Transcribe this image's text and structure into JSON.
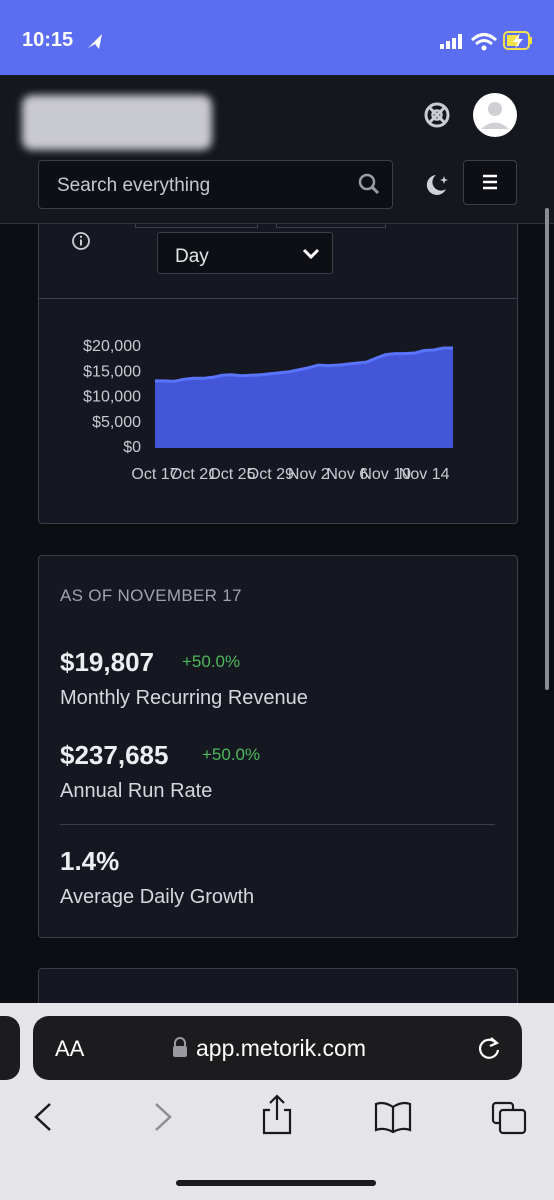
{
  "status_bar": {
    "time": "10:15"
  },
  "header": {
    "search_placeholder": "Search everything"
  },
  "chart_controls": {
    "interval": "Day"
  },
  "chart_data": {
    "type": "area",
    "categories": [
      "Oct 17",
      null,
      null,
      null,
      "Oct 21",
      null,
      null,
      null,
      "Oct 25",
      null,
      null,
      null,
      "Oct 29",
      null,
      null,
      null,
      "Nov 2",
      null,
      null,
      null,
      "Nov 6",
      null,
      null,
      null,
      "Nov 10",
      null,
      null,
      null,
      "Nov 14",
      null,
      null,
      null
    ],
    "values": [
      13300,
      13300,
      13200,
      13600,
      13800,
      13800,
      14000,
      14400,
      14500,
      14300,
      14400,
      14500,
      14700,
      14900,
      15100,
      15500,
      15900,
      16400,
      16300,
      16400,
      16600,
      16800,
      17000,
      17800,
      18500,
      18700,
      18700,
      18800,
      19300,
      19400,
      19800,
      19807
    ],
    "color": "#4356d8",
    "ylim": [
      0,
      20000
    ],
    "yticks": [
      {
        "value": 0,
        "label": "$0"
      },
      {
        "value": 5000,
        "label": "$5,000"
      },
      {
        "value": 10000,
        "label": "$10,000"
      },
      {
        "value": 15000,
        "label": "$15,000"
      },
      {
        "value": 20000,
        "label": "$20,000"
      }
    ]
  },
  "summary": {
    "as_of": "AS OF NOVEMBER 17",
    "metrics": [
      {
        "value": "$19,807",
        "change": "+50.0%",
        "label": "Monthly Recurring Revenue"
      },
      {
        "value": "$237,685",
        "change": "+50.0%",
        "label": "Annual Run Rate"
      },
      {
        "value": "1.4%",
        "label": "Average Daily Growth"
      }
    ]
  },
  "browser": {
    "text_size_button": "AA",
    "url": "app.metorik.com"
  }
}
